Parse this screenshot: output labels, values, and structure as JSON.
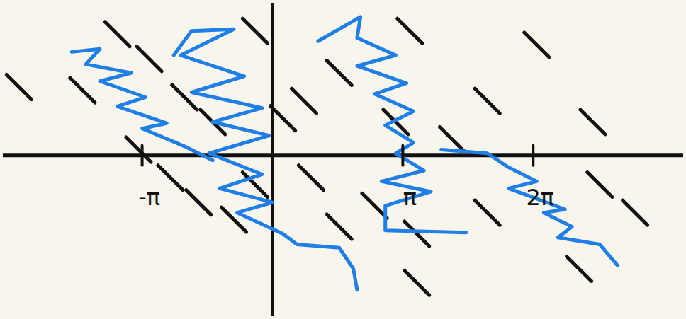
{
  "chart_data": {
    "type": "line",
    "xlim": [
      -6.5,
      9.9
    ],
    "ylim": [
      -3.9,
      3.7
    ],
    "xticks": [
      {
        "value": -3.1416,
        "label": "-π"
      },
      {
        "value": 3.1416,
        "label": "π"
      },
      {
        "value": 6.2832,
        "label": "2π"
      }
    ],
    "yticks": [],
    "tick_labels": "x",
    "grid": false,
    "slope_field": {
      "color": "#111111",
      "segments": [
        [
          -6.41,
          1.96,
          -5.81,
          1.36
        ],
        [
          -4.88,
          1.88,
          -4.28,
          1.28
        ],
        [
          -4.04,
          3.24,
          -3.44,
          2.64
        ],
        [
          -3.27,
          2.64,
          -2.67,
          2.04
        ],
        [
          -2.42,
          1.71,
          -1.82,
          1.11
        ],
        [
          -1.74,
          1.11,
          -1.14,
          0.51
        ],
        [
          -3.53,
          0.44,
          -2.93,
          -0.16
        ],
        [
          -2.76,
          -0.24,
          -2.16,
          -0.84
        ],
        [
          -2.08,
          -0.84,
          -1.48,
          -1.44
        ],
        [
          -1.23,
          -1.26,
          -0.63,
          -1.86
        ],
        [
          -0.72,
          3.32,
          -0.12,
          2.72
        ],
        [
          0.46,
          1.62,
          1.06,
          1.02
        ],
        [
          1.31,
          2.3,
          1.91,
          1.7
        ],
        [
          0.63,
          -0.24,
          1.23,
          -0.84
        ],
        [
          1.31,
          -1.43,
          1.91,
          -2.03
        ],
        [
          2.16,
          -0.92,
          2.76,
          -1.52
        ],
        [
          3.18,
          -1.6,
          3.78,
          -2.2
        ],
        [
          3.18,
          -2.79,
          3.78,
          -3.39
        ],
        [
          2.67,
          1.11,
          3.27,
          0.51
        ],
        [
          3.01,
          3.32,
          3.61,
          2.72
        ],
        [
          4.88,
          1.62,
          5.48,
          1.02
        ],
        [
          4.03,
          0.69,
          4.63,
          0.09
        ],
        [
          4.88,
          -1.09,
          5.48,
          -1.69
        ],
        [
          6.07,
          2.98,
          6.67,
          2.38
        ],
        [
          7.59,
          -0.41,
          8.19,
          -1.01
        ],
        [
          8.44,
          -1.09,
          9.04,
          -1.69
        ],
        [
          7.09,
          -2.45,
          7.69,
          -3.05
        ],
        [
          7.42,
          1.11,
          8.02,
          0.51
        ],
        [
          -0.05,
          1.2,
          0.55,
          0.6
        ],
        [
          -0.72,
          -0.41,
          -0.12,
          -1.01
        ]
      ]
    },
    "series": [
      {
        "color": "#1f7fe6",
        "x": [
          -4.84,
          -4.16,
          -4.5,
          -3.4,
          -4.16,
          -3.06,
          -3.74,
          -2.55,
          -3.14,
          -2.12,
          -1.44
        ],
        "values": [
          2.51,
          2.58,
          2.21,
          2.0,
          1.8,
          1.41,
          1.19,
          0.78,
          0.65,
          0.22,
          -0.12
        ]
      },
      {
        "color": "#1f7fe6",
        "x": [
          -2.38,
          -1.95,
          -0.93,
          -2.21,
          -0.68,
          -1.95,
          -0.25,
          -1.44,
          -0.08,
          -1.53,
          -0.25,
          -1.27,
          0.0,
          -0.85,
          0.25,
          0.59,
          1.61,
          1.95,
          2.04
        ],
        "values": [
          2.43,
          3.02,
          3.06,
          2.43,
          1.92,
          1.53,
          1.15,
          0.81,
          0.48,
          0.05,
          -0.46,
          -0.8,
          -1.14,
          -1.39,
          -1.9,
          -2.16,
          -2.24,
          -2.75,
          -3.26
        ]
      },
      {
        "color": "#1f7fe6",
        "x": [
          1.1,
          2.12,
          2.04,
          2.97,
          2.04,
          3.23,
          2.46,
          3.4,
          2.72,
          3.4,
          2.97,
          3.65,
          2.63,
          3.82,
          2.72,
          2.72,
          4.67
        ],
        "values": [
          2.77,
          3.36,
          2.85,
          2.43,
          2.17,
          1.75,
          1.49,
          1.07,
          0.73,
          0.31,
          0.05,
          -0.37,
          -0.63,
          -0.88,
          -1.22,
          -1.82,
          -1.87
        ]
      },
      {
        "color": "#1f7fe6",
        "x": [
          4.07,
          5.18,
          5.69,
          6.37,
          5.69,
          6.37,
          7.05,
          6.54,
          7.22,
          6.88,
          7.89,
          8.32
        ],
        "values": [
          0.14,
          0.05,
          -0.29,
          -0.63,
          -0.8,
          -1.05,
          -1.31,
          -1.39,
          -1.73,
          -1.99,
          -2.16,
          -2.67
        ]
      }
    ]
  }
}
